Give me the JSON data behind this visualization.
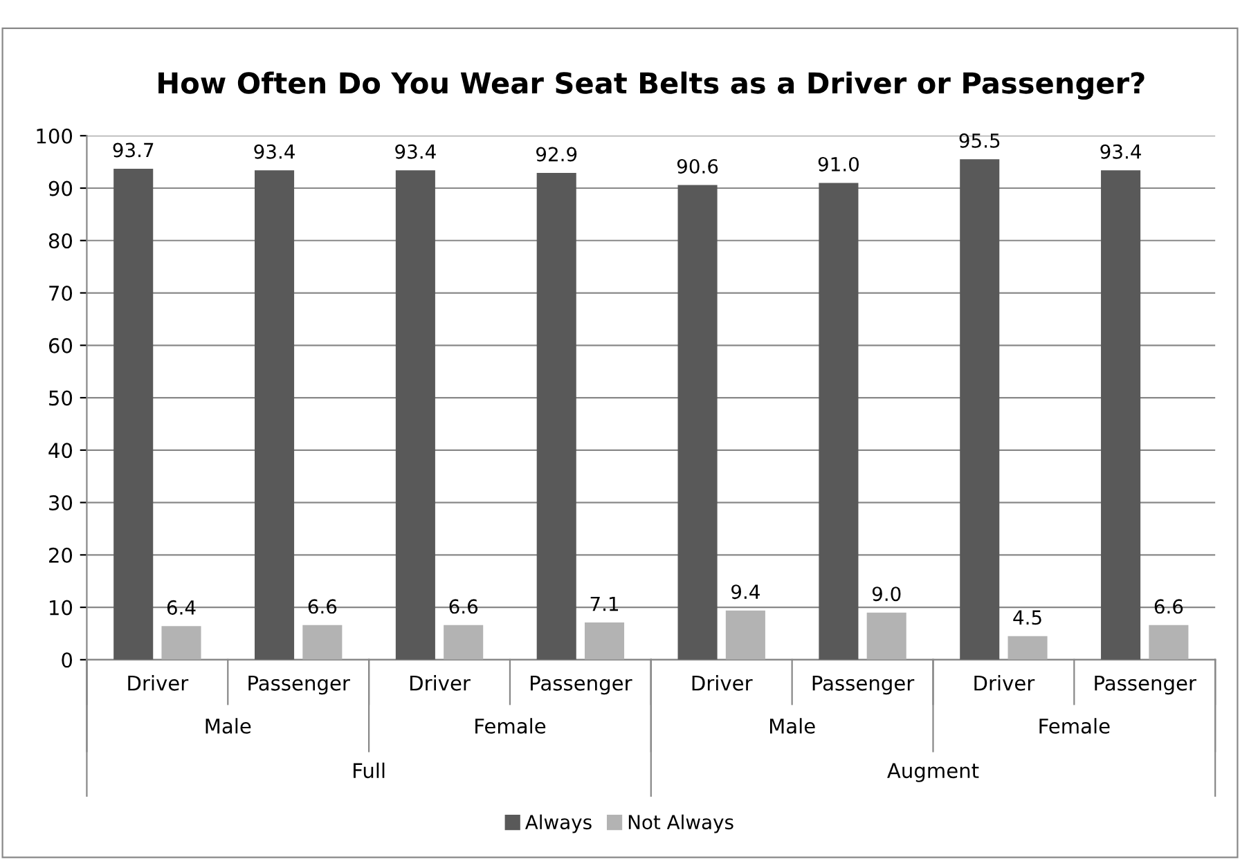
{
  "chart_data": {
    "type": "bar",
    "title": "How Often Do You Wear Seat Belts as a Driver or Passenger?",
    "categories": [
      "Driver",
      "Passenger",
      "Driver",
      "Passenger",
      "Driver",
      "Passenger",
      "Driver",
      "Passenger"
    ],
    "series": [
      {
        "name": "Always",
        "color": "#595959",
        "values": [
          93.7,
          93.4,
          93.4,
          92.9,
          90.6,
          91.0,
          95.5,
          93.4
        ],
        "value_labels": [
          "93.7",
          "93.4",
          "93.4",
          "92.9",
          "90.6",
          "91.0",
          "95.5",
          "93.4"
        ]
      },
      {
        "name": "Not Always",
        "color": "#b3b3b3",
        "values": [
          6.4,
          6.6,
          6.6,
          7.1,
          9.4,
          9.0,
          4.5,
          6.6
        ],
        "value_labels": [
          "6.4",
          "6.6",
          "6.6",
          "7.1",
          "9.4",
          "9.0",
          "4.5",
          "6.6"
        ]
      }
    ],
    "annotations": [
      "Male",
      "Female",
      "Male",
      "Female",
      "Full",
      "Augment"
    ],
    "ylim": [
      0,
      100
    ],
    "yticks": [
      0,
      10,
      20,
      30,
      40,
      50,
      60,
      70,
      80,
      90,
      100
    ],
    "grid": "y",
    "legend": "bottom"
  }
}
